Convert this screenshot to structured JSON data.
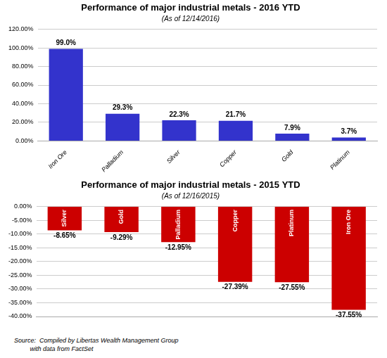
{
  "chart_data": [
    {
      "type": "bar",
      "title": "Performance of major industrial metals - 2016 YTD",
      "subtitle": "(As of 12/14/2016)",
      "categories": [
        "Iron Ore",
        "Palladium",
        "Silver",
        "Copper",
        "Gold",
        "Platinum"
      ],
      "values": [
        99.0,
        29.3,
        22.3,
        21.7,
        7.9,
        3.7
      ],
      "value_labels": [
        "99.0%",
        "29.3%",
        "22.3%",
        "21.7%",
        "7.9%",
        "3.7%"
      ],
      "data_labels": true,
      "color": "#3333cc",
      "ylim": [
        0,
        120
      ],
      "yticks": [
        {
          "value": 0,
          "label": "0.00%"
        },
        {
          "value": 20,
          "label": "20.00%"
        },
        {
          "value": 40,
          "label": "40.00%"
        },
        {
          "value": 60,
          "label": "60.00%"
        },
        {
          "value": 80,
          "label": "80.00%"
        },
        {
          "value": 100,
          "label": "100.00%"
        },
        {
          "value": 120,
          "label": "120.00%"
        }
      ],
      "grid": true
    },
    {
      "type": "bar",
      "title": "Performance of major industrial metals - 2015 YTD",
      "subtitle": "(As of 12/16/2015)",
      "categories": [
        "Silver",
        "Gold",
        "Palladium",
        "Copper",
        "Platinum",
        "Iron Ore"
      ],
      "values": [
        -8.65,
        -9.29,
        -12.95,
        -27.39,
        -27.55,
        -37.55
      ],
      "value_labels": [
        "-8.65%",
        "-9.29%",
        "-12.95%",
        "-27.39%",
        "-27.55%",
        "-37.55%"
      ],
      "data_labels": true,
      "color": "#cc0000",
      "ylim": [
        -40,
        0
      ],
      "yticks": [
        {
          "value": 0,
          "label": "0.00%"
        },
        {
          "value": -5,
          "label": "-5.00%"
        },
        {
          "value": -10,
          "label": "-10.00%"
        },
        {
          "value": -15,
          "label": "-15.00%"
        },
        {
          "value": -20,
          "label": "-20.00%"
        },
        {
          "value": -25,
          "label": "-25.00%"
        },
        {
          "value": -30,
          "label": "-30.00%"
        },
        {
          "value": -35,
          "label": "-35.00%"
        },
        {
          "value": -40,
          "label": "-40.00%"
        }
      ],
      "grid": true,
      "tick_labels": "y",
      "annotations": [
        "Source:  Compiled by Libertas Wealth Management Group",
        "         with data from FactSet"
      ]
    }
  ]
}
